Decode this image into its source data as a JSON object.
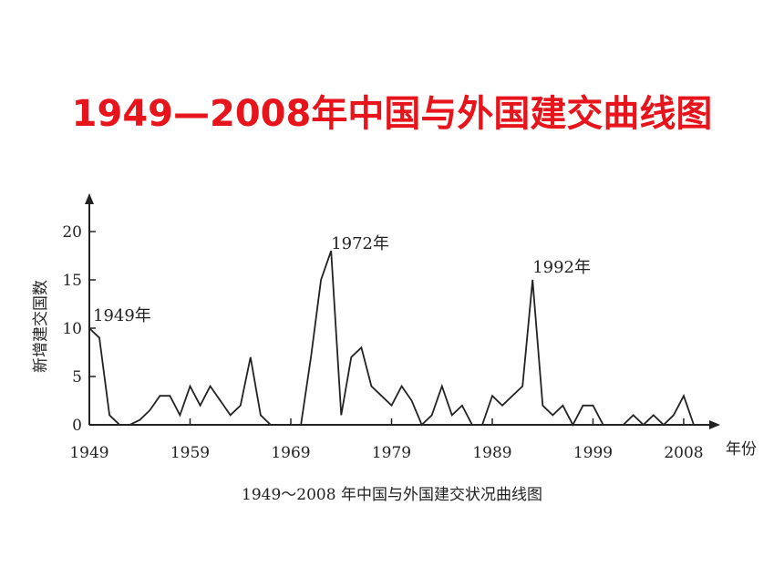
{
  "page": {
    "title": "1949—2008年中国与外国建交曲线图",
    "caption": "1949～2008 年中国与外国建交状况曲线图"
  },
  "chart_data": {
    "type": "line",
    "title": "",
    "xlabel": "年份",
    "ylabel": "新增建交国数",
    "xlim": [
      1949,
      2010
    ],
    "ylim": [
      0,
      22
    ],
    "x_ticks": [
      1949,
      1959,
      1969,
      1979,
      1989,
      1999,
      2008
    ],
    "y_ticks": [
      0,
      5,
      10,
      15,
      20
    ],
    "grid": false,
    "line_color": "#222222",
    "segments": [
      [
        {
          "x": 1949,
          "y": 10
        },
        {
          "x": 1950,
          "y": 9
        },
        {
          "x": 1951,
          "y": 1
        },
        {
          "x": 1952,
          "y": 0
        },
        {
          "x": 1953,
          "y": 0
        },
        {
          "x": 1954,
          "y": 0.5
        },
        {
          "x": 1955,
          "y": 1.5
        },
        {
          "x": 1956,
          "y": 3
        },
        {
          "x": 1957,
          "y": 3
        },
        {
          "x": 1958,
          "y": 1
        },
        {
          "x": 1959,
          "y": 4
        },
        {
          "x": 1960,
          "y": 2
        },
        {
          "x": 1961,
          "y": 4
        },
        {
          "x": 1962,
          "y": 2.5
        },
        {
          "x": 1963,
          "y": 1
        },
        {
          "x": 1964,
          "y": 2
        },
        {
          "x": 1965,
          "y": 7
        },
        {
          "x": 1966,
          "y": 1
        },
        {
          "x": 1967,
          "y": 0
        }
      ],
      [
        {
          "x": 1970,
          "y": 0
        },
        {
          "x": 1971,
          "y": 7
        },
        {
          "x": 1972,
          "y": 15
        },
        {
          "x": 1973,
          "y": 18
        },
        {
          "x": 1974,
          "y": 1
        },
        {
          "x": 1975,
          "y": 7
        },
        {
          "x": 1976,
          "y": 8
        },
        {
          "x": 1977,
          "y": 4
        },
        {
          "x": 1978,
          "y": 3
        },
        {
          "x": 1979,
          "y": 2
        },
        {
          "x": 1980,
          "y": 4
        },
        {
          "x": 1981,
          "y": 2.5
        },
        {
          "x": 1982,
          "y": 0
        },
        {
          "x": 1983,
          "y": 1
        },
        {
          "x": 1984,
          "y": 4
        },
        {
          "x": 1985,
          "y": 1
        },
        {
          "x": 1986,
          "y": 2
        },
        {
          "x": 1987,
          "y": 0
        }
      ],
      [
        {
          "x": 1988,
          "y": 0
        },
        {
          "x": 1989,
          "y": 3
        },
        {
          "x": 1990,
          "y": 2
        },
        {
          "x": 1991,
          "y": 3
        },
        {
          "x": 1992,
          "y": 4
        },
        {
          "x": 1993,
          "y": 15
        },
        {
          "x": 1994,
          "y": 2
        },
        {
          "x": 1995,
          "y": 1
        },
        {
          "x": 1996,
          "y": 2
        },
        {
          "x": 1997,
          "y": 0
        },
        {
          "x": 1998,
          "y": 2
        },
        {
          "x": 1999,
          "y": 2
        },
        {
          "x": 2000,
          "y": 0
        }
      ],
      [
        {
          "x": 2002,
          "y": 0
        },
        {
          "x": 2003,
          "y": 1
        },
        {
          "x": 2004,
          "y": 0
        },
        {
          "x": 2005,
          "y": 1
        },
        {
          "x": 2006,
          "y": 0
        },
        {
          "x": 2007,
          "y": 1
        },
        {
          "x": 2008,
          "y": 3
        },
        {
          "x": 2009,
          "y": 0
        }
      ]
    ],
    "annotations": [
      {
        "text": "1949年",
        "x": 1949,
        "y": 10
      },
      {
        "text": "1972年",
        "x": 1973,
        "y": 18
      },
      {
        "text": "1992年",
        "x": 1993,
        "y": 15
      }
    ]
  }
}
